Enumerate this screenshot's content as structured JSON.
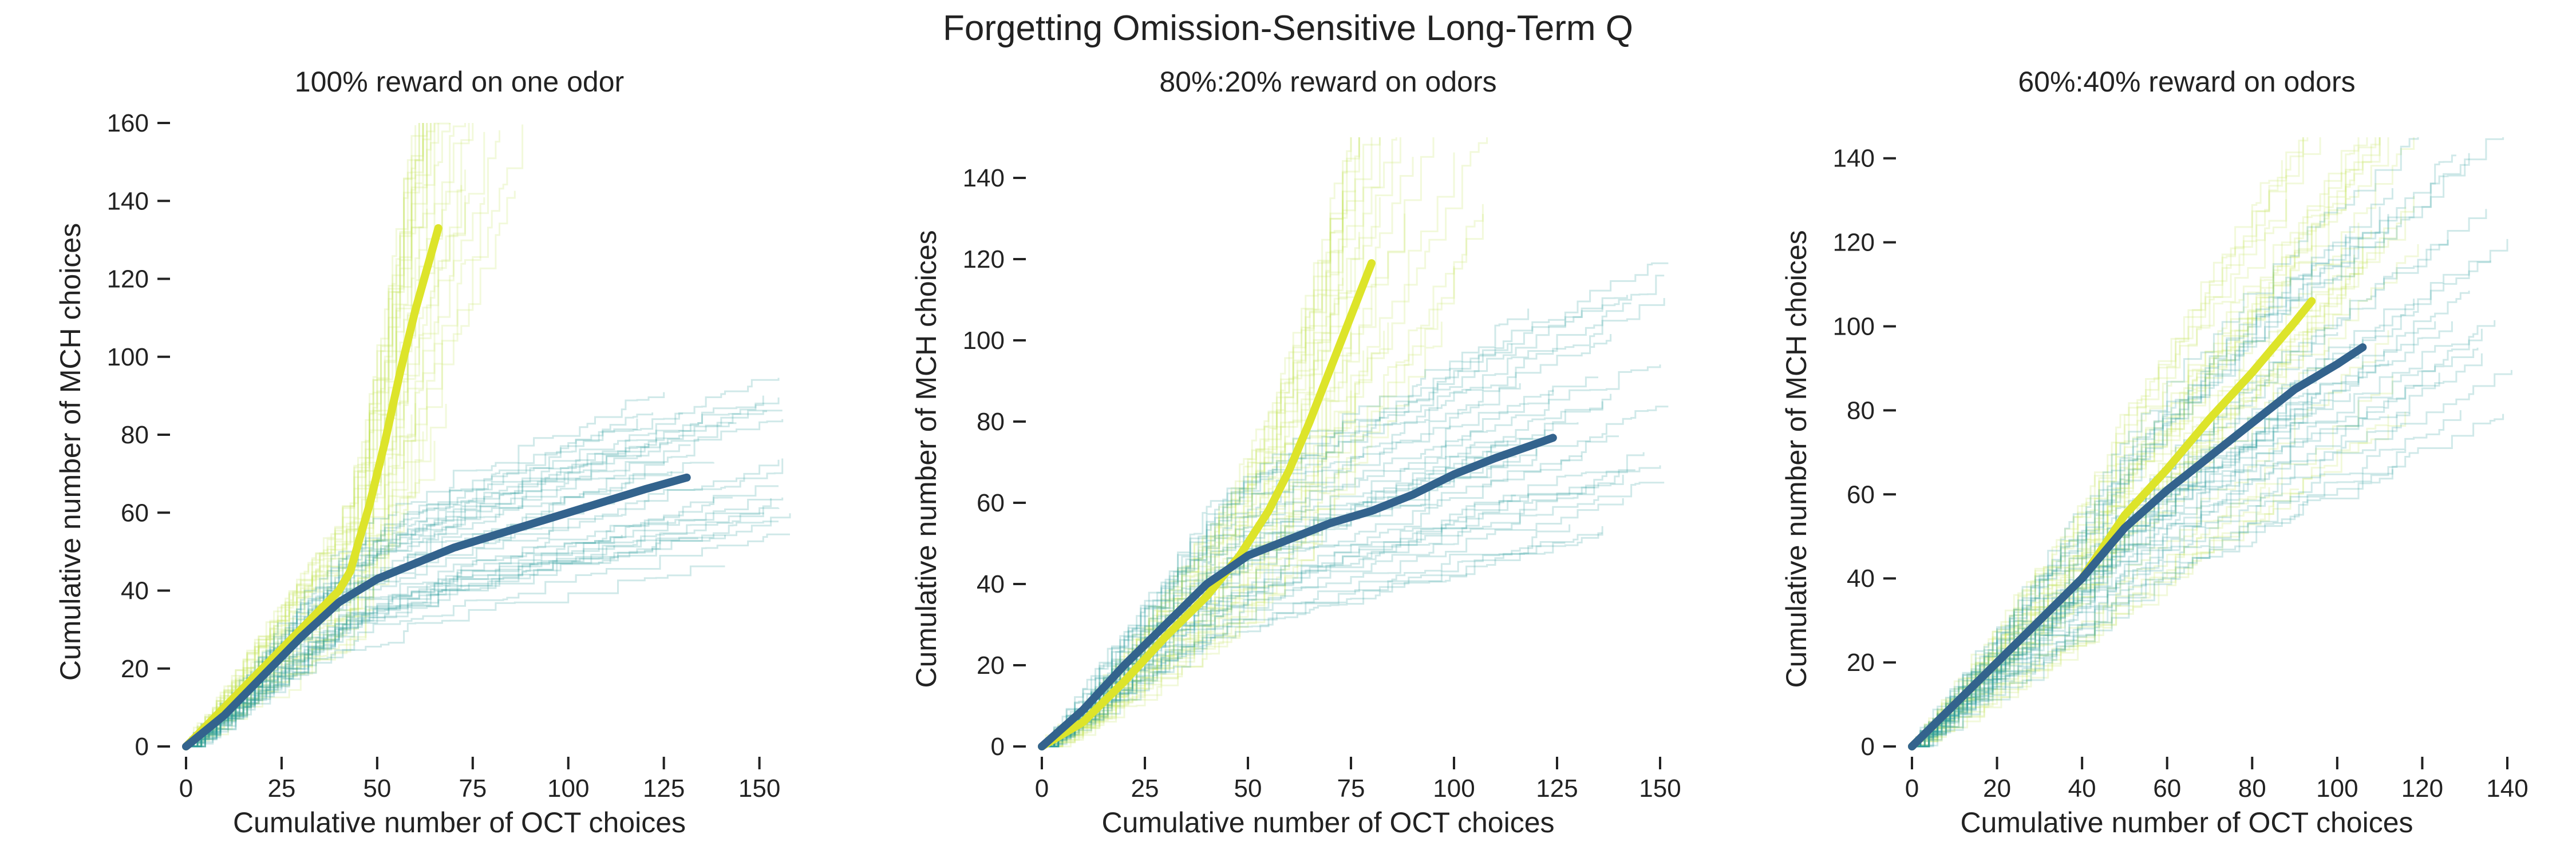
{
  "figure": {
    "title": "Forgetting Omission-Sensitive Long-Term Q"
  },
  "colors": {
    "cond1_mean": "#dde42a",
    "cond2_mean": "#33638d",
    "cond1_trace": "#c4e45a",
    "cond2_trace": "#2a9a9a",
    "axis": "#222222"
  },
  "chart_data": [
    {
      "type": "line",
      "title": "100% reward on one odor",
      "xlabel": "Cumulative number of OCT choices",
      "ylabel": "Cumulative number of MCH choices",
      "xlim": [
        0,
        155
      ],
      "ylim": [
        0,
        160
      ],
      "xticks": [
        0,
        25,
        50,
        75,
        100,
        125,
        150
      ],
      "yticks": [
        0,
        20,
        40,
        60,
        80,
        100,
        120,
        140,
        160
      ],
      "grid": false,
      "series": [
        {
          "color": "#dde42a",
          "x": [
            0,
            10,
            20,
            30,
            40,
            43,
            45,
            48,
            52,
            56,
            60,
            64,
            66
          ],
          "y": [
            0,
            10,
            20,
            30,
            40,
            45,
            52,
            62,
            78,
            96,
            112,
            126,
            133
          ]
        },
        {
          "color": "#33638d",
          "x": [
            0,
            10,
            20,
            30,
            40,
            50,
            60,
            70,
            80,
            90,
            100,
            110,
            120,
            131
          ],
          "y": [
            0,
            8,
            18,
            28,
            37,
            43,
            47,
            51,
            54,
            57,
            60,
            63,
            66,
            69
          ]
        }
      ]
    },
    {
      "type": "line",
      "title": "80%:20% reward on odors",
      "xlabel": "Cumulative number of OCT choices",
      "ylabel": "Cumulative number of MCH choices",
      "xlim": [
        0,
        150
      ],
      "ylim": [
        0,
        150
      ],
      "xticks": [
        0,
        25,
        50,
        75,
        100,
        125,
        150
      ],
      "yticks": [
        0,
        20,
        40,
        60,
        80,
        100,
        120,
        140
      ],
      "grid": false,
      "series": [
        {
          "color": "#dde42a",
          "x": [
            0,
            10,
            20,
            30,
            40,
            48,
            55,
            60,
            65,
            70,
            75,
            80
          ],
          "y": [
            0,
            6,
            16,
            27,
            37,
            47,
            58,
            68,
            80,
            93,
            106,
            119
          ]
        },
        {
          "color": "#33638d",
          "x": [
            0,
            10,
            20,
            30,
            40,
            50,
            60,
            70,
            80,
            90,
            100,
            110,
            124
          ],
          "y": [
            0,
            9,
            20,
            30,
            40,
            47,
            51,
            55,
            58,
            62,
            67,
            71,
            76
          ]
        }
      ]
    },
    {
      "type": "line",
      "title": "60%:40% reward on odors",
      "xlabel": "Cumulative number of OCT choices",
      "ylabel": "Cumulative number of MCH choices",
      "xlim": [
        0,
        140
      ],
      "ylim": [
        0,
        145
      ],
      "xticks": [
        0,
        20,
        40,
        60,
        80,
        100,
        120,
        140
      ],
      "yticks": [
        0,
        20,
        40,
        60,
        80,
        100,
        120,
        140
      ],
      "grid": false,
      "series": [
        {
          "color": "#dde42a",
          "x": [
            0,
            10,
            20,
            30,
            40,
            50,
            60,
            70,
            80,
            90,
            94
          ],
          "y": [
            0,
            10,
            20,
            30,
            40,
            55,
            66,
            78,
            89,
            101,
            106
          ]
        },
        {
          "color": "#33638d",
          "x": [
            0,
            10,
            20,
            30,
            40,
            50,
            60,
            70,
            80,
            90,
            100,
            106
          ],
          "y": [
            0,
            10,
            20,
            30,
            40,
            52,
            61,
            69,
            77,
            85,
            91,
            95
          ]
        }
      ]
    }
  ]
}
